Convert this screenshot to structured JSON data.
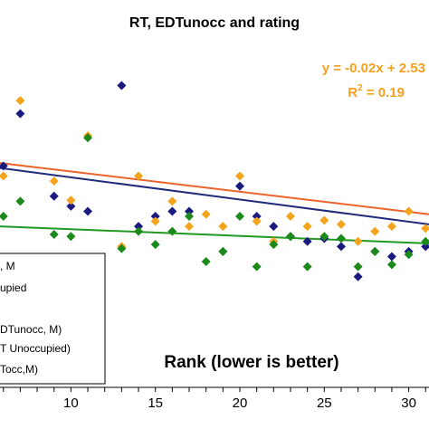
{
  "chart_data": {
    "type": "scatter",
    "title": "RT, EDTunocc and rating",
    "xlabel": "Rank (lower is better)",
    "ylabel": "",
    "xlim": [
      5.8,
      31.2
    ],
    "ylim": [
      0.2,
      3.6
    ],
    "x_ticks": [
      10,
      15,
      20,
      25,
      30
    ],
    "grid": false,
    "legend_position": "bottom-left",
    "legend_entries": [
      ", M",
      "upied",
      "",
      "DTunocc, M)",
      "T Unoccupied)",
      "Tocc,M)"
    ],
    "annotation": {
      "equation": "y = -0.02x + 2.53",
      "r2_label": "R",
      "r2_sup": "2",
      "r2_value": " = 0.19"
    },
    "colors": {
      "navy": "#1a1a7e",
      "orange": "#f4a41c",
      "green": "#1b8a1b",
      "navy_trend": "#1f2a78",
      "orange_trend": "#e8642a",
      "green_trend": "#229922"
    },
    "series": [
      {
        "color": "navy",
        "marker": "diamond",
        "points": [
          [
            6,
            2.4
          ],
          [
            7,
            2.92
          ],
          [
            9,
            2.1
          ],
          [
            10,
            2.0
          ],
          [
            11,
            1.95
          ],
          [
            13,
            3.2
          ],
          [
            14,
            1.8
          ],
          [
            15,
            1.9
          ],
          [
            16,
            1.95
          ],
          [
            17,
            1.95
          ],
          [
            19,
            1.55
          ],
          [
            20,
            2.2
          ],
          [
            21,
            1.9
          ],
          [
            22,
            1.8
          ],
          [
            23,
            1.7
          ],
          [
            24,
            1.65
          ],
          [
            25,
            1.68
          ],
          [
            26,
            1.6
          ],
          [
            27,
            1.3
          ],
          [
            28,
            1.55
          ],
          [
            29,
            1.5
          ],
          [
            30,
            1.55
          ],
          [
            31,
            1.6
          ]
        ]
      },
      {
        "color": "orange",
        "marker": "diamond",
        "points": [
          [
            6,
            2.3
          ],
          [
            7,
            3.05
          ],
          [
            9,
            2.25
          ],
          [
            10,
            2.06
          ],
          [
            11,
            2.7
          ],
          [
            13,
            1.6
          ],
          [
            14,
            2.3
          ],
          [
            15,
            1.85
          ],
          [
            16,
            2.05
          ],
          [
            17,
            1.8
          ],
          [
            18,
            1.92
          ],
          [
            19,
            1.8
          ],
          [
            20,
            2.3
          ],
          [
            21,
            1.85
          ],
          [
            22,
            1.65
          ],
          [
            23,
            1.9
          ],
          [
            24,
            1.8
          ],
          [
            25,
            1.86
          ],
          [
            26,
            1.82
          ],
          [
            27,
            1.65
          ],
          [
            28,
            1.75
          ],
          [
            29,
            1.8
          ],
          [
            30,
            1.95
          ],
          [
            31,
            1.78
          ]
        ]
      },
      {
        "color": "green",
        "marker": "diamond",
        "points": [
          [
            6,
            1.9
          ],
          [
            7,
            2.05
          ],
          [
            9,
            1.72
          ],
          [
            10,
            1.7
          ],
          [
            11,
            2.68
          ],
          [
            13,
            1.58
          ],
          [
            14,
            1.75
          ],
          [
            15,
            1.62
          ],
          [
            16,
            1.75
          ],
          [
            17,
            1.9
          ],
          [
            18,
            1.45
          ],
          [
            19,
            1.55
          ],
          [
            20,
            1.9
          ],
          [
            21,
            1.4
          ],
          [
            22,
            1.62
          ],
          [
            23,
            1.7
          ],
          [
            24,
            1.4
          ],
          [
            25,
            1.7
          ],
          [
            26,
            1.68
          ],
          [
            27,
            1.4
          ],
          [
            28,
            1.55
          ],
          [
            29,
            1.42
          ],
          [
            30,
            1.52
          ],
          [
            31,
            1.65
          ]
        ]
      }
    ],
    "trendlines": [
      {
        "color": "orange_trend",
        "from": [
          5.8,
          2.43
        ],
        "to": [
          31.2,
          1.92
        ]
      },
      {
        "color": "navy_trend",
        "from": [
          5.8,
          2.38
        ],
        "to": [
          31.2,
          1.82
        ]
      },
      {
        "color": "green_trend",
        "from": [
          5.8,
          1.8
        ],
        "to": [
          31.2,
          1.63
        ]
      }
    ]
  }
}
